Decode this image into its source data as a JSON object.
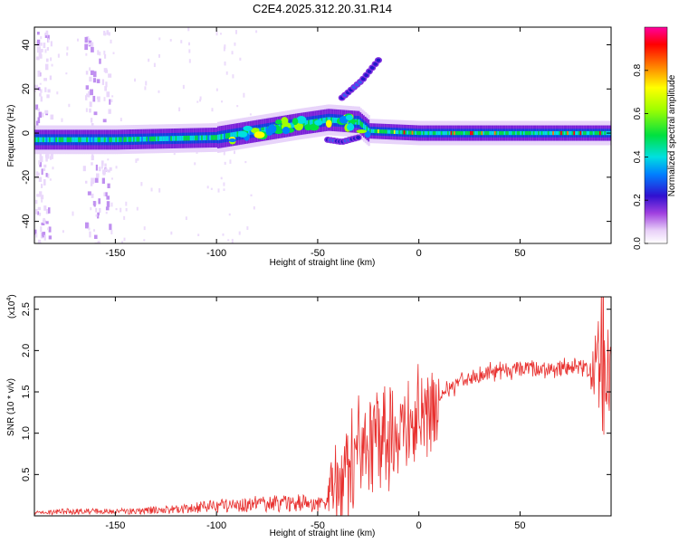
{
  "title": "C2E4.2025.312.20.31.R14",
  "chart_data": [
    {
      "type": "heatmap",
      "xlabel": "Height of straight line (km)",
      "ylabel": "Frequency (Hz)",
      "xlim": [
        -190,
        95
      ],
      "ylim": [
        -50,
        48
      ],
      "xticks": [
        -150,
        -100,
        -50,
        0,
        50
      ],
      "yticks": [
        -40,
        -20,
        0,
        20,
        40
      ],
      "xtick_labels": [
        "-150",
        "-100",
        "-50",
        "0",
        "50"
      ],
      "ytick_labels": [
        "-40",
        "-20",
        "0",
        "20",
        "40"
      ],
      "colorbar": {
        "label": "Normalized spectral amplitude",
        "range": [
          0,
          1
        ],
        "ticks": [
          0.0,
          0.2,
          0.4,
          0.6,
          0.8
        ],
        "tick_labels": [
          "0.0",
          "0.2",
          "0.4",
          "0.6",
          "0.8"
        ]
      },
      "ridge": [
        {
          "x": -190,
          "f": -3
        },
        {
          "x": -150,
          "f": -3
        },
        {
          "x": -100,
          "f": -2
        },
        {
          "x": -80,
          "f": 1
        },
        {
          "x": -60,
          "f": 4
        },
        {
          "x": -45,
          "f": 6
        },
        {
          "x": -30,
          "f": 5
        },
        {
          "x": -25,
          "f": 1
        },
        {
          "x": 0,
          "f": 0
        },
        {
          "x": 50,
          "f": 0
        },
        {
          "x": 95,
          "f": 0
        }
      ],
      "upper_branch": [
        {
          "x": -38,
          "f": 16
        },
        {
          "x": -28,
          "f": 24
        },
        {
          "x": -20,
          "f": 33
        }
      ],
      "lower_branch": [
        {
          "x": -45,
          "f": -3
        },
        {
          "x": -38,
          "f": -4
        },
        {
          "x": -30,
          "f": -2
        }
      ]
    },
    {
      "type": "line",
      "xlabel": "Height of straight line (km)",
      "ylabel": "SNR (10 * v/v)",
      "multiplier_label": "(x10",
      "multiplier_exp": "4",
      "xlim": [
        -190,
        95
      ],
      "ylim": [
        0,
        2.65
      ],
      "xticks": [
        -150,
        -100,
        -50,
        0,
        50
      ],
      "yticks": [
        0.5,
        1.0,
        1.5,
        2.0,
        2.5
      ],
      "xtick_labels": [
        "-150",
        "-100",
        "-50",
        "0",
        "50"
      ],
      "ytick_labels": [
        "0.5",
        "1.0",
        "1.5",
        "2.0",
        "2.5"
      ],
      "series": [
        {
          "color": "#e8302e",
          "envelope": [
            {
              "x": -190,
              "y": 0.05
            },
            {
              "x": -175,
              "y": 0.08
            },
            {
              "x": -150,
              "y": 0.08
            },
            {
              "x": -120,
              "y": 0.12
            },
            {
              "x": -100,
              "y": 0.18
            },
            {
              "x": -80,
              "y": 0.22
            },
            {
              "x": -60,
              "y": 0.24
            },
            {
              "x": -45,
              "y": 0.2
            },
            {
              "x": -38,
              "y": 0.4
            },
            {
              "x": -30,
              "y": 0.8
            },
            {
              "x": -20,
              "y": 0.95
            },
            {
              "x": -10,
              "y": 1.05
            },
            {
              "x": 0,
              "y": 1.2
            },
            {
              "x": 10,
              "y": 1.45
            },
            {
              "x": 20,
              "y": 1.62
            },
            {
              "x": 30,
              "y": 1.72
            },
            {
              "x": 45,
              "y": 1.77
            },
            {
              "x": 60,
              "y": 1.78
            },
            {
              "x": 80,
              "y": 1.8
            },
            {
              "x": 95,
              "y": 1.78
            }
          ]
        }
      ]
    }
  ]
}
